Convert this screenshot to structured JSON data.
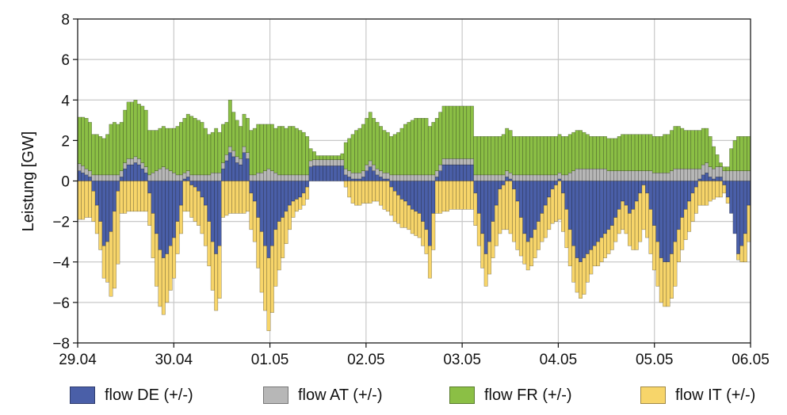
{
  "chart_data": {
    "type": "bar",
    "stacked": true,
    "diverging": true,
    "title": "",
    "xlabel": "",
    "ylabel": "Leistung [GW]",
    "ylim": [
      -8,
      8
    ],
    "yticks": [
      -8,
      -6,
      -4,
      -2,
      0,
      2,
      4,
      6,
      8
    ],
    "xlim": [
      "29.04",
      "06.05"
    ],
    "xticks": [
      "29.04",
      "30.04",
      "01.05",
      "02.05",
      "03.05",
      "04.05",
      "05.05",
      "06.05"
    ],
    "grid": true,
    "legend_position": "bottom",
    "interval": "hourly",
    "series": [
      {
        "name": "flow DE (+/-)",
        "color": "#4a5fa8",
        "values": [
          0.5,
          0.4,
          0.3,
          0.2,
          -0.5,
          -1.2,
          -2.0,
          -3.2,
          -3.0,
          -2.5,
          -1.5,
          -0.5,
          0.2,
          0.6,
          0.8,
          0.8,
          0.9,
          0.8,
          0.6,
          0.4,
          -0.6,
          -1.6,
          -2.6,
          -3.4,
          -3.8,
          -3.6,
          -3.2,
          -2.8,
          -2.0,
          -1.2,
          0.1,
          0.2,
          -0.2,
          -0.3,
          -0.5,
          -0.8,
          -1.2,
          -2.0,
          -3.0,
          -3.6,
          -3.2,
          0.6,
          1.0,
          1.4,
          1.2,
          0.9,
          0.8,
          1.4,
          1.1,
          -0.6,
          -1.0,
          -1.8,
          -2.5,
          -3.2,
          -3.8,
          -3.2,
          -2.4,
          -2.0,
          -1.8,
          -1.5,
          -1.2,
          -1.0,
          -0.9,
          -0.8,
          -0.6,
          -0.3,
          0.7,
          0.75,
          0.75,
          0.75,
          0.75,
          0.75,
          0.75,
          0.75,
          0.75,
          0.75,
          0.3,
          0.2,
          0.1,
          0.1,
          0.1,
          0.2,
          0.5,
          0.7,
          0.5,
          0.3,
          0.2,
          0.1,
          0.1,
          -0.3,
          -0.5,
          -0.7,
          -0.9,
          -1.0,
          -1.2,
          -1.4,
          -1.5,
          -1.6,
          -2.0,
          -2.4,
          -3.2,
          -1.6,
          0.2,
          0.5,
          0.8,
          0.8,
          0.8,
          0.8,
          0.8,
          0.8,
          0.8,
          0.8,
          0.8,
          -0.6,
          -1.6,
          -2.6,
          -3.6,
          -3.0,
          -2.0,
          -1.2,
          -0.4,
          -0.2,
          0.2,
          0.1,
          -0.4,
          -1.0,
          -1.8,
          -2.6,
          -3.0,
          -2.8,
          -2.4,
          -2.0,
          -1.6,
          -1.2,
          -0.8,
          -0.4,
          -0.2,
          0.1,
          -0.6,
          -1.4,
          -2.4,
          -3.2,
          -3.8,
          -4.0,
          -3.8,
          -3.6,
          -3.4,
          -3.2,
          -3.0,
          -2.8,
          -2.6,
          -2.4,
          -2.2,
          -1.8,
          -1.4,
          -1.0,
          -1.2,
          -1.6,
          -1.4,
          -1.0,
          -0.6,
          -0.2,
          -0.6,
          -1.4,
          -2.2,
          -3.0,
          -3.8,
          -4.0,
          -4.0,
          -3.6,
          -3.0,
          -2.4,
          -1.8,
          -1.4,
          -1.0,
          -0.6,
          -0.3,
          0.1,
          0.3,
          0.4,
          0.2,
          0.1,
          0.2,
          0.2,
          -0.2,
          -0.8,
          -1.6,
          -2.6,
          -3.6,
          -3.2,
          -2.6,
          -1.2
        ]
      },
      {
        "name": "flow AT (+/-)",
        "color": "#b7b7b7",
        "values": [
          0.35,
          0.35,
          0.3,
          0.3,
          0.3,
          0.3,
          0.3,
          0.3,
          0.3,
          0.3,
          0.3,
          0.3,
          0.3,
          0.3,
          0.3,
          0.3,
          0.3,
          0.3,
          0.3,
          0.3,
          0.3,
          0.4,
          0.5,
          0.6,
          0.7,
          0.6,
          0.5,
          0.4,
          0.3,
          0.3,
          0.3,
          0.3,
          0.3,
          0.3,
          0.3,
          0.3,
          0.3,
          0.3,
          0.4,
          0.4,
          0.4,
          0.3,
          0.3,
          0.3,
          0.3,
          0.3,
          0.3,
          0.3,
          0.3,
          0.3,
          0.3,
          0.4,
          0.4,
          0.5,
          0.6,
          0.5,
          0.4,
          0.3,
          0.3,
          0.3,
          0.3,
          0.3,
          0.3,
          0.3,
          0.3,
          0.3,
          0.3,
          0.3,
          0.3,
          0.3,
          0.3,
          0.3,
          0.3,
          0.3,
          0.3,
          0.3,
          0.3,
          0.3,
          0.3,
          0.3,
          0.3,
          0.3,
          0.3,
          0.3,
          0.3,
          0.3,
          0.3,
          0.3,
          0.3,
          0.3,
          0.3,
          0.3,
          0.3,
          0.3,
          0.3,
          0.3,
          0.3,
          0.3,
          0.3,
          0.3,
          0.3,
          0.3,
          0.3,
          0.3,
          0.3,
          0.3,
          0.3,
          0.3,
          0.3,
          0.3,
          0.3,
          0.3,
          0.3,
          0.3,
          0.3,
          0.3,
          0.3,
          0.3,
          0.3,
          0.3,
          0.3,
          0.3,
          0.3,
          0.3,
          0.3,
          0.3,
          0.3,
          0.3,
          0.3,
          0.3,
          0.3,
          0.3,
          0.3,
          0.3,
          0.3,
          0.3,
          0.3,
          0.3,
          0.3,
          0.3,
          0.4,
          0.5,
          0.6,
          0.6,
          0.6,
          0.6,
          0.6,
          0.6,
          0.6,
          0.6,
          0.6,
          0.5,
          0.5,
          0.5,
          0.5,
          0.5,
          0.5,
          0.5,
          0.5,
          0.5,
          0.5,
          0.5,
          0.5,
          0.5,
          0.4,
          0.4,
          0.4,
          0.4,
          0.4,
          0.5,
          0.6,
          0.6,
          0.6,
          0.6,
          0.6,
          0.6,
          0.6,
          0.5,
          0.5,
          0.5,
          0.5,
          0.5,
          0.5,
          0.5,
          0.5,
          0.5,
          0.5,
          0.5,
          0.5,
          0.5,
          0.5,
          0.5,
          0.5,
          0.6,
          0.6,
          0.6,
          0.5,
          0.5
        ]
      },
      {
        "name": "flow FR (+/-)",
        "color": "#8bbf45",
        "values": [
          2.3,
          2.4,
          2.5,
          2.4,
          2.0,
          2.0,
          1.9,
          1.8,
          2.0,
          2.5,
          2.6,
          2.5,
          2.4,
          2.6,
          2.8,
          2.8,
          2.8,
          2.7,
          2.8,
          2.8,
          2.2,
          2.1,
          2.0,
          2.0,
          2.0,
          2.0,
          2.1,
          2.2,
          2.4,
          2.6,
          2.7,
          2.8,
          2.9,
          2.8,
          2.7,
          2.6,
          2.3,
          2.0,
          2.0,
          2.2,
          2.0,
          1.9,
          1.6,
          2.3,
          1.9,
          1.8,
          1.6,
          1.6,
          1.7,
          2.2,
          2.3,
          2.4,
          2.4,
          2.3,
          2.2,
          2.3,
          2.2,
          2.4,
          2.4,
          2.3,
          2.4,
          2.4,
          2.3,
          2.2,
          2.1,
          1.9,
          0.6,
          0.4,
          0.2,
          0.2,
          0.2,
          0.2,
          0.2,
          0.2,
          0.2,
          0.3,
          1.3,
          1.6,
          1.9,
          2.1,
          2.2,
          2.3,
          2.3,
          2.4,
          2.3,
          2.3,
          2.2,
          2.1,
          2.0,
          1.9,
          2.0,
          2.1,
          2.3,
          2.5,
          2.6,
          2.7,
          2.8,
          2.8,
          2.8,
          2.8,
          2.4,
          2.6,
          2.6,
          2.6,
          2.6,
          2.6,
          2.6,
          2.6,
          2.6,
          2.6,
          2.6,
          2.6,
          2.6,
          1.9,
          1.9,
          1.9,
          1.9,
          1.9,
          1.9,
          1.9,
          1.9,
          2.0,
          2.1,
          2.1,
          1.9,
          1.9,
          1.9,
          1.9,
          1.9,
          1.9,
          1.9,
          1.9,
          1.9,
          1.9,
          1.9,
          1.9,
          1.9,
          1.9,
          1.9,
          1.9,
          1.9,
          1.9,
          1.9,
          1.9,
          1.8,
          1.7,
          1.6,
          1.6,
          1.6,
          1.6,
          1.6,
          1.6,
          1.6,
          1.6,
          1.7,
          1.8,
          1.8,
          1.8,
          1.8,
          1.8,
          1.8,
          1.8,
          1.8,
          1.8,
          1.8,
          1.8,
          1.8,
          1.9,
          1.9,
          2.0,
          2.1,
          2.1,
          2.0,
          1.9,
          1.9,
          1.9,
          1.9,
          1.9,
          1.8,
          1.7,
          1.5,
          1.1,
          0.6,
          0.2,
          0.2,
          0.2,
          1.1,
          1.5,
          1.7,
          1.7,
          1.7,
          1.7,
          1.7,
          1.6,
          1.6,
          2.2
        ]
      },
      {
        "name": "flow IT (+/-)",
        "color": "#f7d56a",
        "values": [
          -1.9,
          -1.9,
          -1.8,
          -1.8,
          -1.5,
          -1.4,
          -1.4,
          -1.6,
          -2.0,
          -3.2,
          -3.8,
          -3.6,
          -1.6,
          -1.6,
          -1.5,
          -1.5,
          -1.5,
          -1.5,
          -1.5,
          -1.5,
          -1.6,
          -2.2,
          -2.6,
          -2.8,
          -2.8,
          -2.4,
          -2.2,
          -2.0,
          -1.6,
          -1.4,
          -1.5,
          -1.5,
          -1.6,
          -1.7,
          -1.7,
          -1.8,
          -2.0,
          -2.2,
          -2.4,
          -2.8,
          -2.6,
          -1.8,
          -1.7,
          -1.6,
          -1.6,
          -1.6,
          -1.6,
          -1.6,
          -1.5,
          -1.8,
          -2.0,
          -2.5,
          -3.0,
          -3.2,
          -3.6,
          -3.3,
          -2.8,
          -2.4,
          -2.0,
          -1.6,
          -1.2,
          -0.8,
          -0.6,
          -0.6,
          -0.6,
          -0.6,
          0,
          0,
          0,
          0,
          0,
          0,
          0,
          0,
          0,
          0,
          -0.3,
          -0.8,
          -1.1,
          -1.2,
          -1.2,
          -1.1,
          -1.1,
          -1.1,
          -1.0,
          -1.0,
          -1.2,
          -1.4,
          -1.5,
          -1.4,
          -1.5,
          -1.4,
          -1.4,
          -1.3,
          -1.2,
          -1.2,
          -1.2,
          -1.2,
          -1.2,
          -1.2,
          -1.6,
          -1.8,
          -1.6,
          -1.6,
          -1.5,
          -1.5,
          -1.4,
          -1.4,
          -1.4,
          -1.4,
          -1.4,
          -1.4,
          -1.4,
          -1.6,
          -1.6,
          -1.7,
          -1.6,
          -1.6,
          -1.8,
          -2.0,
          -2.2,
          -2.2,
          -2.4,
          -2.6,
          -2.6,
          -2.4,
          -1.9,
          -1.5,
          -1.4,
          -1.4,
          -1.4,
          -1.4,
          -1.4,
          -1.6,
          -1.6,
          -1.7,
          -1.8,
          -1.9,
          -1.9,
          -1.9,
          -1.8,
          -1.8,
          -1.7,
          -1.8,
          -1.8,
          -1.4,
          -1.2,
          -1.0,
          -1.2,
          -1.2,
          -1.2,
          -1.2,
          -1.2,
          -1.2,
          -1.2,
          -1.4,
          -1.4,
          -1.6,
          -2.0,
          -2.4,
          -2.4,
          -2.2,
          -2.2,
          -2.2,
          -2.2,
          -2.2,
          -2.2,
          -2.2,
          -2.2,
          -2.2,
          -2.2,
          -1.6,
          -1.6,
          -1.5,
          -1.5,
          -1.4,
          -1.3,
          -1.2,
          -1.2,
          -1.2,
          -1.0,
          -0.9,
          -0.8,
          -0.8,
          -0.4,
          -0.3,
          0,
          0,
          -0.3,
          -0.8,
          -1.4,
          -1.8,
          -1.8,
          -1.6,
          -1.6,
          -1.4,
          -1.0,
          -0.9
        ]
      }
    ]
  }
}
